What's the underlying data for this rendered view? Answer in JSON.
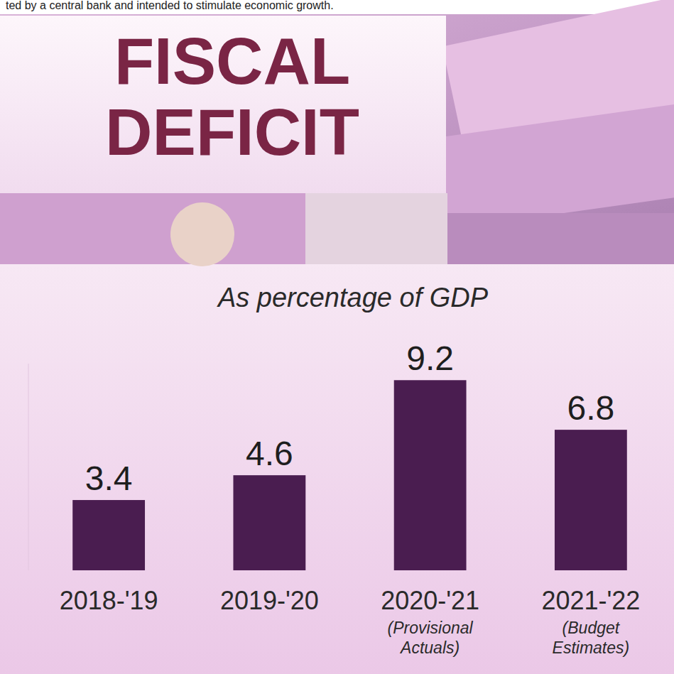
{
  "note": "ted by a central bank and intended to stimulate economic growth.",
  "chart_data": {
    "type": "bar",
    "title": "FISCAL DEFICIT",
    "subtitle": "As percentage of GDP",
    "categories": [
      "2018-'19",
      "2019-'20",
      "2020-'21",
      "2021-'22"
    ],
    "category_notes": [
      null,
      null,
      "(Provisional Actuals)",
      "(Budget Estimates)"
    ],
    "values": [
      3.4,
      4.6,
      9.2,
      6.8
    ],
    "color": "#4a1d50",
    "ylim": [
      0,
      10
    ],
    "yticks": [],
    "grid": false,
    "data_labels": true,
    "tick_labels": "x"
  }
}
